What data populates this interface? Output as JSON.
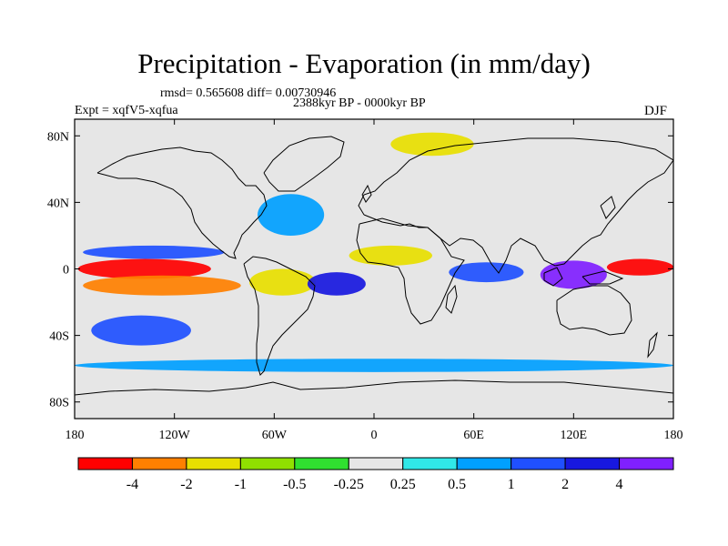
{
  "chart_data": {
    "type": "heatmap",
    "title": "Precipitation - Evaporation (in mm/day)",
    "stats_text": "rmsd= 0.565608 diff= 0.00730946",
    "period_text": "2388kyr BP - 0000kyr BP",
    "left_label": "Expt = xqfV5-xqfua",
    "right_label": "DJF",
    "lon_range": [
      -180,
      180
    ],
    "lat_range": [
      -90,
      90
    ],
    "x_ticks": [
      {
        "lon": -180,
        "label": "180"
      },
      {
        "lon": -120,
        "label": "120W"
      },
      {
        "lon": -60,
        "label": "60W"
      },
      {
        "lon": 0,
        "label": "0"
      },
      {
        "lon": 60,
        "label": "60E"
      },
      {
        "lon": 120,
        "label": "120E"
      },
      {
        "lon": 180,
        "label": "180"
      }
    ],
    "y_ticks": [
      {
        "lat": 80,
        "label": "80N"
      },
      {
        "lat": 40,
        "label": "40N"
      },
      {
        "lat": 0,
        "label": "0"
      },
      {
        "lat": -40,
        "label": "40S"
      },
      {
        "lat": -80,
        "label": "80S"
      }
    ],
    "colorbar": {
      "levels": [
        "-4",
        "-2",
        "-1",
        "-0.5",
        "-0.25",
        "0.25",
        "0.5",
        "1",
        "2",
        "4"
      ],
      "colors": [
        "#ff0000",
        "#ff8000",
        "#e8e000",
        "#90e000",
        "#30e030",
        "#e6e6e6",
        "#30e8e8",
        "#00a0ff",
        "#2050ff",
        "#1818e0",
        "#8020ff"
      ]
    },
    "features": [
      {
        "region": "central-pacific-equator",
        "lon": [
          -178,
          -98
        ],
        "lat": [
          -6,
          6
        ],
        "level": "-4"
      },
      {
        "region": "pacific-itcz-south",
        "lon": [
          -175,
          -80
        ],
        "lat": [
          -16,
          -4
        ],
        "level": "-2"
      },
      {
        "region": "pacific-itcz-north",
        "lon": [
          -175,
          -90
        ],
        "lat": [
          6,
          14
        ],
        "level": "1"
      },
      {
        "region": "south-pacific-convergence",
        "lon": [
          -170,
          -110
        ],
        "lat": [
          -46,
          -28
        ],
        "level": "1"
      },
      {
        "region": "amazon-basin",
        "lon": [
          -75,
          -35
        ],
        "lat": [
          -16,
          0
        ],
        "level": "-1"
      },
      {
        "region": "south-atlantic",
        "lon": [
          -40,
          -5
        ],
        "lat": [
          -16,
          -2
        ],
        "level": "2"
      },
      {
        "region": "north-atlantic",
        "lon": [
          -70,
          -30
        ],
        "lat": [
          20,
          45
        ],
        "level": "0.5"
      },
      {
        "region": "greenland-arctic",
        "lon": [
          10,
          60
        ],
        "lat": [
          68,
          82
        ],
        "level": "-1"
      },
      {
        "region": "sahel",
        "lon": [
          -15,
          35
        ],
        "lat": [
          2,
          14
        ],
        "level": "-1"
      },
      {
        "region": "indian-ocean",
        "lon": [
          45,
          90
        ],
        "lat": [
          -8,
          4
        ],
        "level": "1"
      },
      {
        "region": "maritime-continent",
        "lon": [
          100,
          140
        ],
        "lat": [
          -12,
          5
        ],
        "level": "4"
      },
      {
        "region": "western-pacific-equator",
        "lon": [
          140,
          180
        ],
        "lat": [
          -4,
          6
        ],
        "level": "-4"
      },
      {
        "region": "southern-ocean",
        "lon": [
          -180,
          180
        ],
        "lat": [
          -62,
          -54
        ],
        "level": "0.5"
      }
    ]
  }
}
